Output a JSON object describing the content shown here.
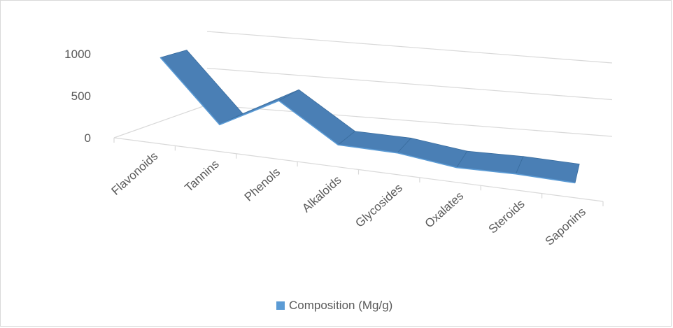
{
  "chart_data": {
    "type": "area",
    "style": "3d-ribbon",
    "categories": [
      "Flavonoids",
      "Tannins",
      "Phenols",
      "Alkaloids",
      "Glycosides",
      "Oxalates",
      "Steroids",
      "Saponins"
    ],
    "series": [
      {
        "name": "Composition (Mg/g)",
        "values": [
          950,
          220,
          600,
          150,
          140,
          50,
          60,
          40
        ]
      }
    ],
    "y_ticks": [
      "0",
      "500",
      "1000"
    ],
    "ylim": [
      0,
      1000
    ],
    "grid": true,
    "legend_position": "bottom",
    "colors": {
      "series_top": "#4a7fb5",
      "series_front": "#5b9bd5",
      "series_edge": "#3a6d9e",
      "grid": "#d9d9d9",
      "axis_text": "#595959"
    }
  }
}
